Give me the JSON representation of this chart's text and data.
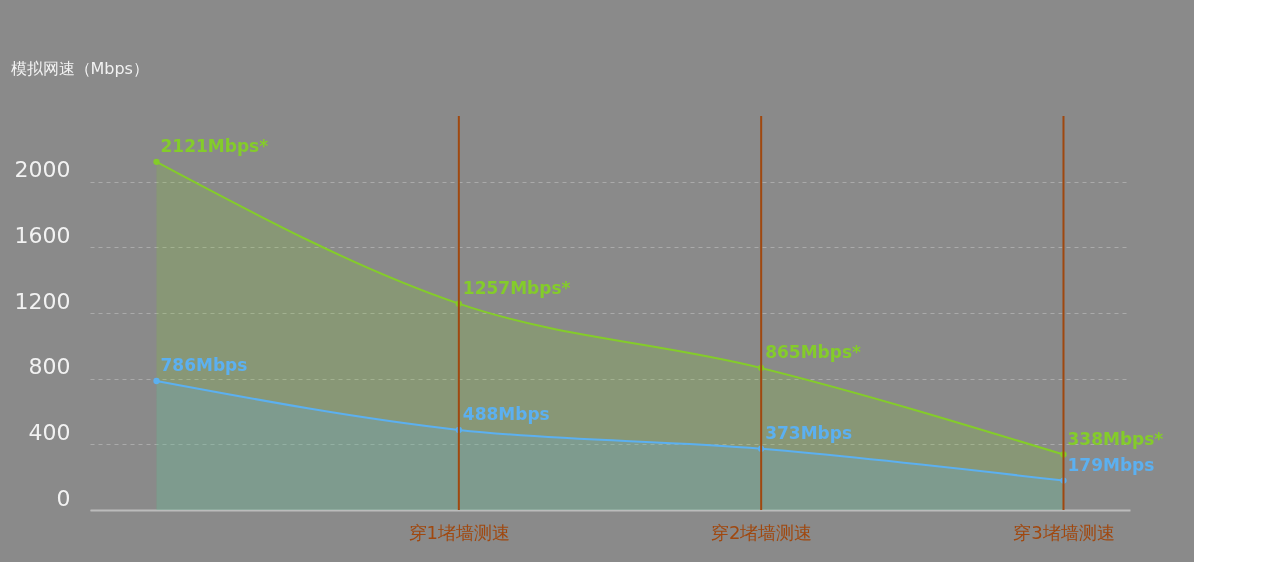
{
  "chart_data": {
    "type": "area",
    "ylabel": "模拟网速（Mbps）",
    "categories": [
      null,
      "穿1堵墙测速",
      "穿2堵墙测速",
      "穿3堵墙测速"
    ],
    "series": [
      {
        "color": "#84cc2a",
        "values": [
          2121,
          1257,
          865,
          338
        ],
        "value_labels": [
          "2121Mbps*",
          "1257Mbps*",
          "865Mbps*",
          "338Mbps*"
        ]
      },
      {
        "color": "#5cb0f0",
        "values": [
          786,
          488,
          373,
          179
        ],
        "value_labels": [
          "786Mbps",
          "488Mbps",
          "373Mbps",
          "179Mbps"
        ]
      }
    ],
    "ylim": [
      0,
      2400
    ],
    "yticks": [
      0,
      400,
      800,
      1200,
      1600,
      2000
    ],
    "grid": "y",
    "marker": "circle",
    "ref_lines": [
      {
        "axis": "x",
        "value": "穿1堵墙测速",
        "color": "#a0480f"
      },
      {
        "axis": "x",
        "value": "穿2堵墙测速",
        "color": "#a0480f"
      },
      {
        "axis": "x",
        "value": "穿3堵墙测速",
        "color": "#a0480f"
      }
    ]
  }
}
